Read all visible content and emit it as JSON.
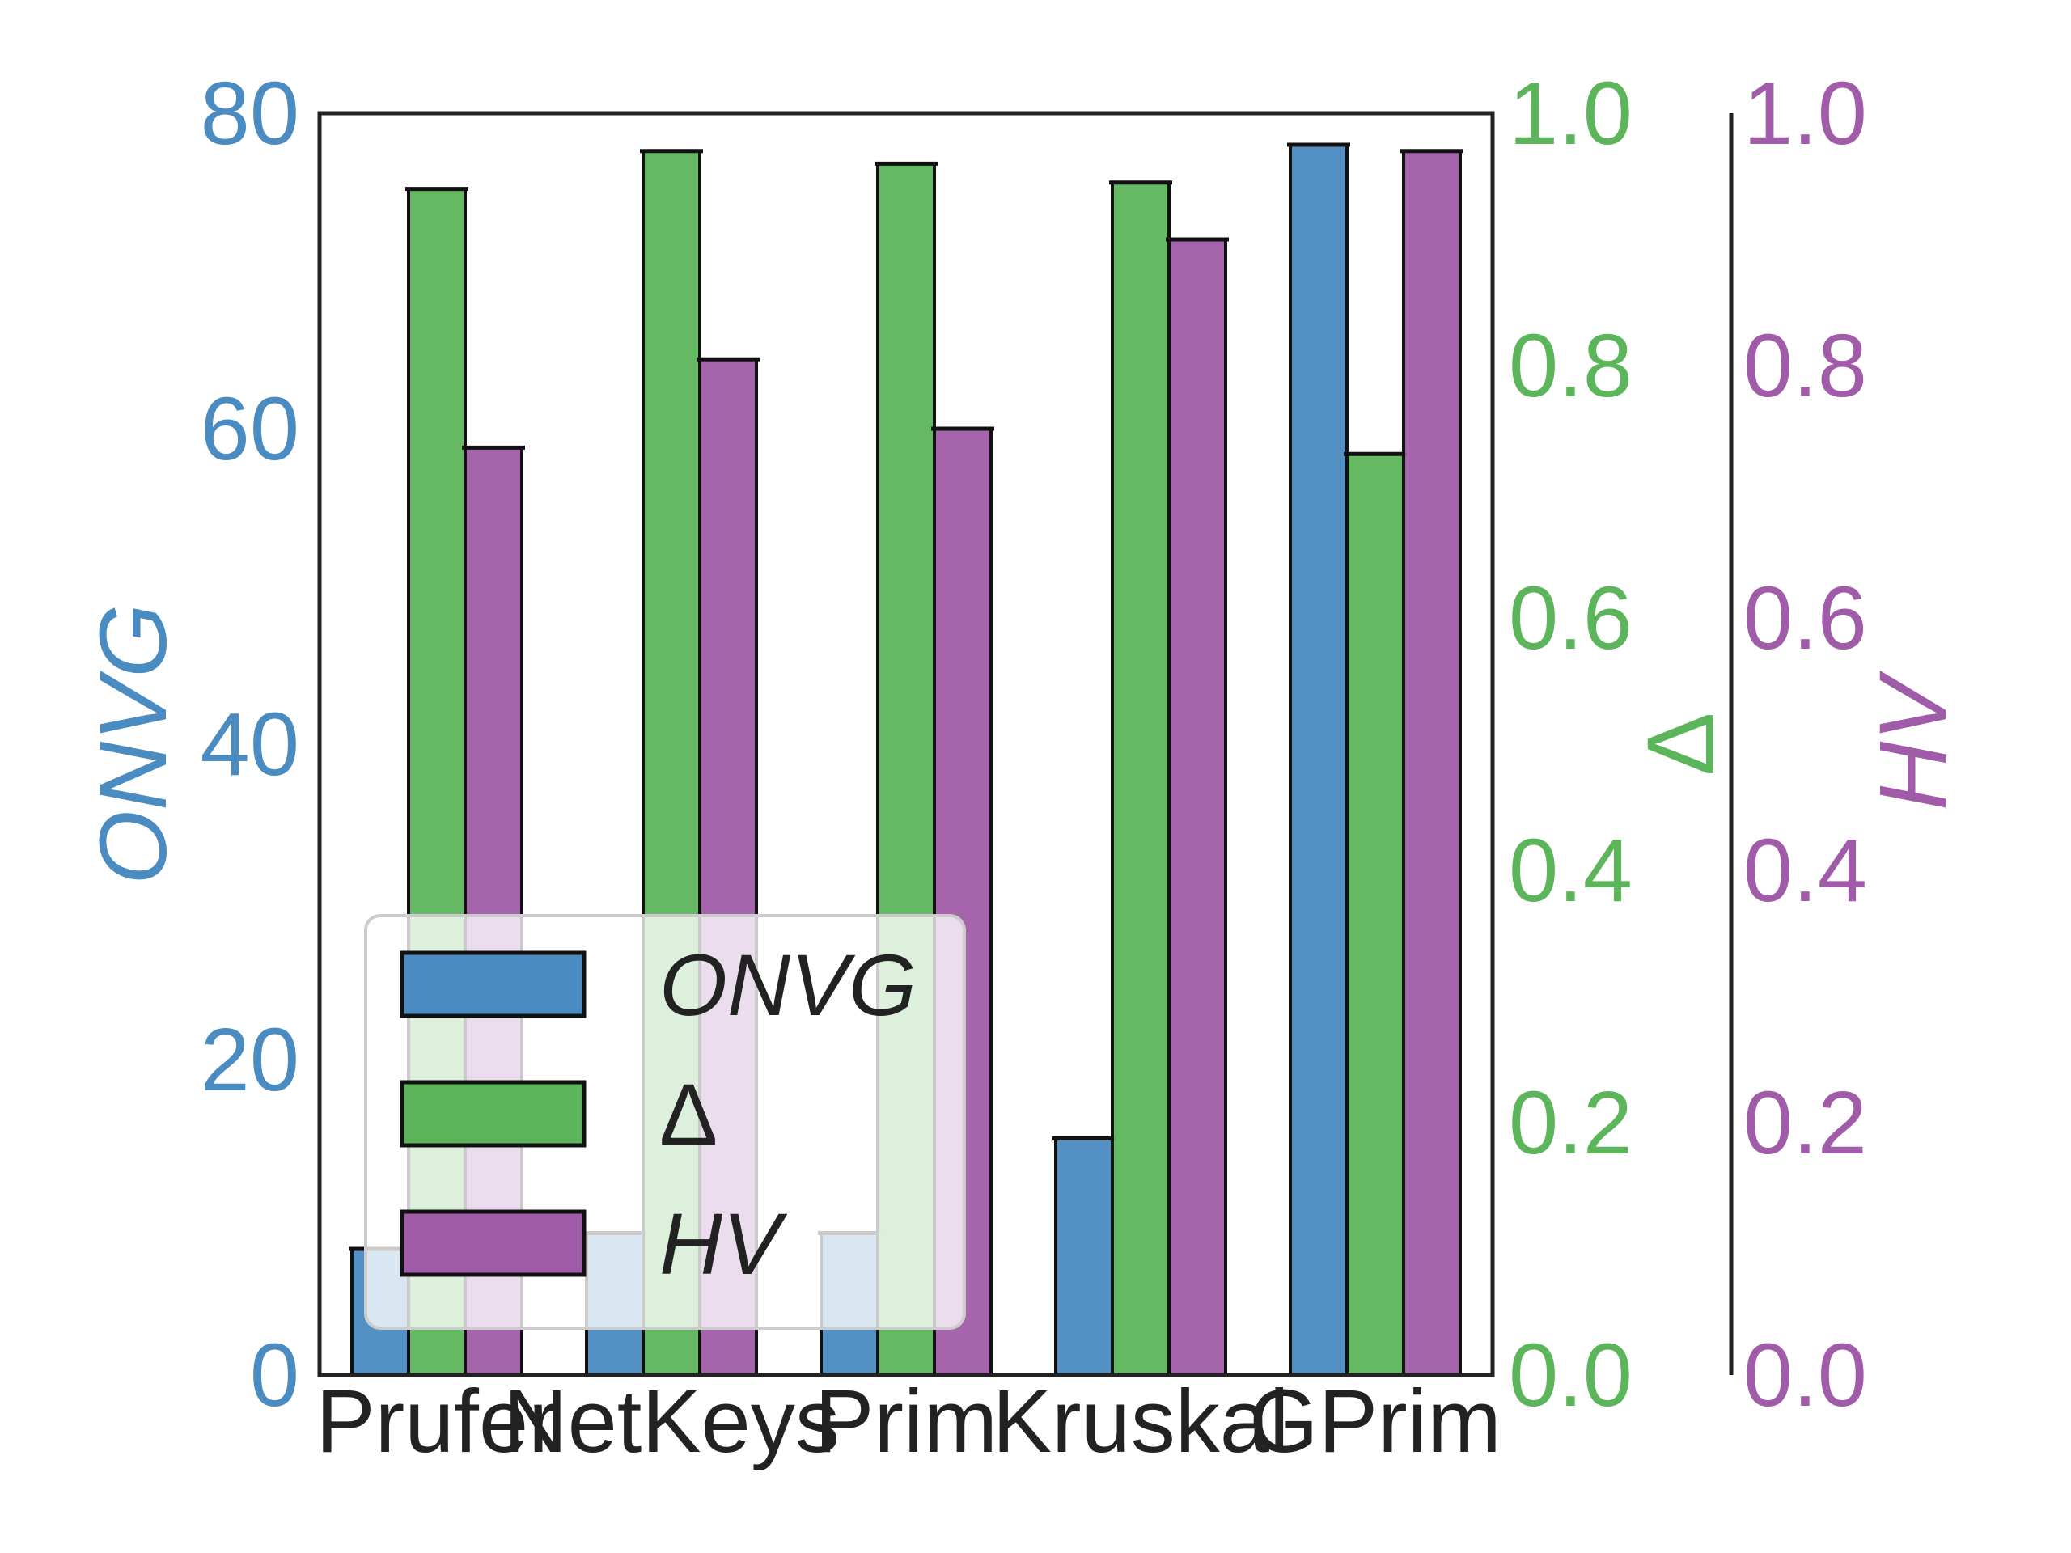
{
  "chart_data": {
    "type": "bar",
    "categories": [
      "Prufer",
      "NetKeys",
      "Prim",
      "Kruskal",
      "GPrim"
    ],
    "series": [
      {
        "name": "ONVG",
        "axis": "left",
        "values": [
          8,
          9,
          9,
          15,
          78
        ],
        "color": "#4a8bc1"
      },
      {
        "name": "Δ",
        "axis": "right1",
        "values": [
          0.94,
          0.97,
          0.96,
          0.945,
          0.73
        ],
        "color": "#5cb55a"
      },
      {
        "name": "HV",
        "axis": "right2",
        "values": [
          0.735,
          0.805,
          0.75,
          0.9,
          0.97
        ],
        "color": "#a05ca8"
      }
    ],
    "axes": {
      "left": {
        "label": "ONVG",
        "ylim": [
          0,
          80
        ],
        "ticks": [
          0,
          20,
          40,
          60,
          80
        ],
        "tick_labels": [
          "0",
          "20",
          "40",
          "60",
          "80"
        ],
        "color": "#4a8bc1"
      },
      "right1": {
        "label": "Δ",
        "ylim": [
          0,
          1.0
        ],
        "ticks": [
          0,
          0.2,
          0.4,
          0.6,
          0.8,
          1.0
        ],
        "tick_labels": [
          "0.0",
          "0.2",
          "0.4",
          "0.6",
          "0.8",
          "1.0"
        ],
        "color": "#5cb55a"
      },
      "right2": {
        "label": "HV",
        "ylim": [
          0,
          1.0
        ],
        "ticks": [
          0,
          0.2,
          0.4,
          0.6,
          0.8,
          1.0
        ],
        "tick_labels": [
          "0.0",
          "0.2",
          "0.4",
          "0.6",
          "0.8",
          "1.0"
        ],
        "color": "#a05ca8"
      }
    },
    "legend": {
      "position": "lower-left",
      "entries": [
        "ONVG",
        "Δ",
        "HV"
      ]
    },
    "grid": false
  }
}
